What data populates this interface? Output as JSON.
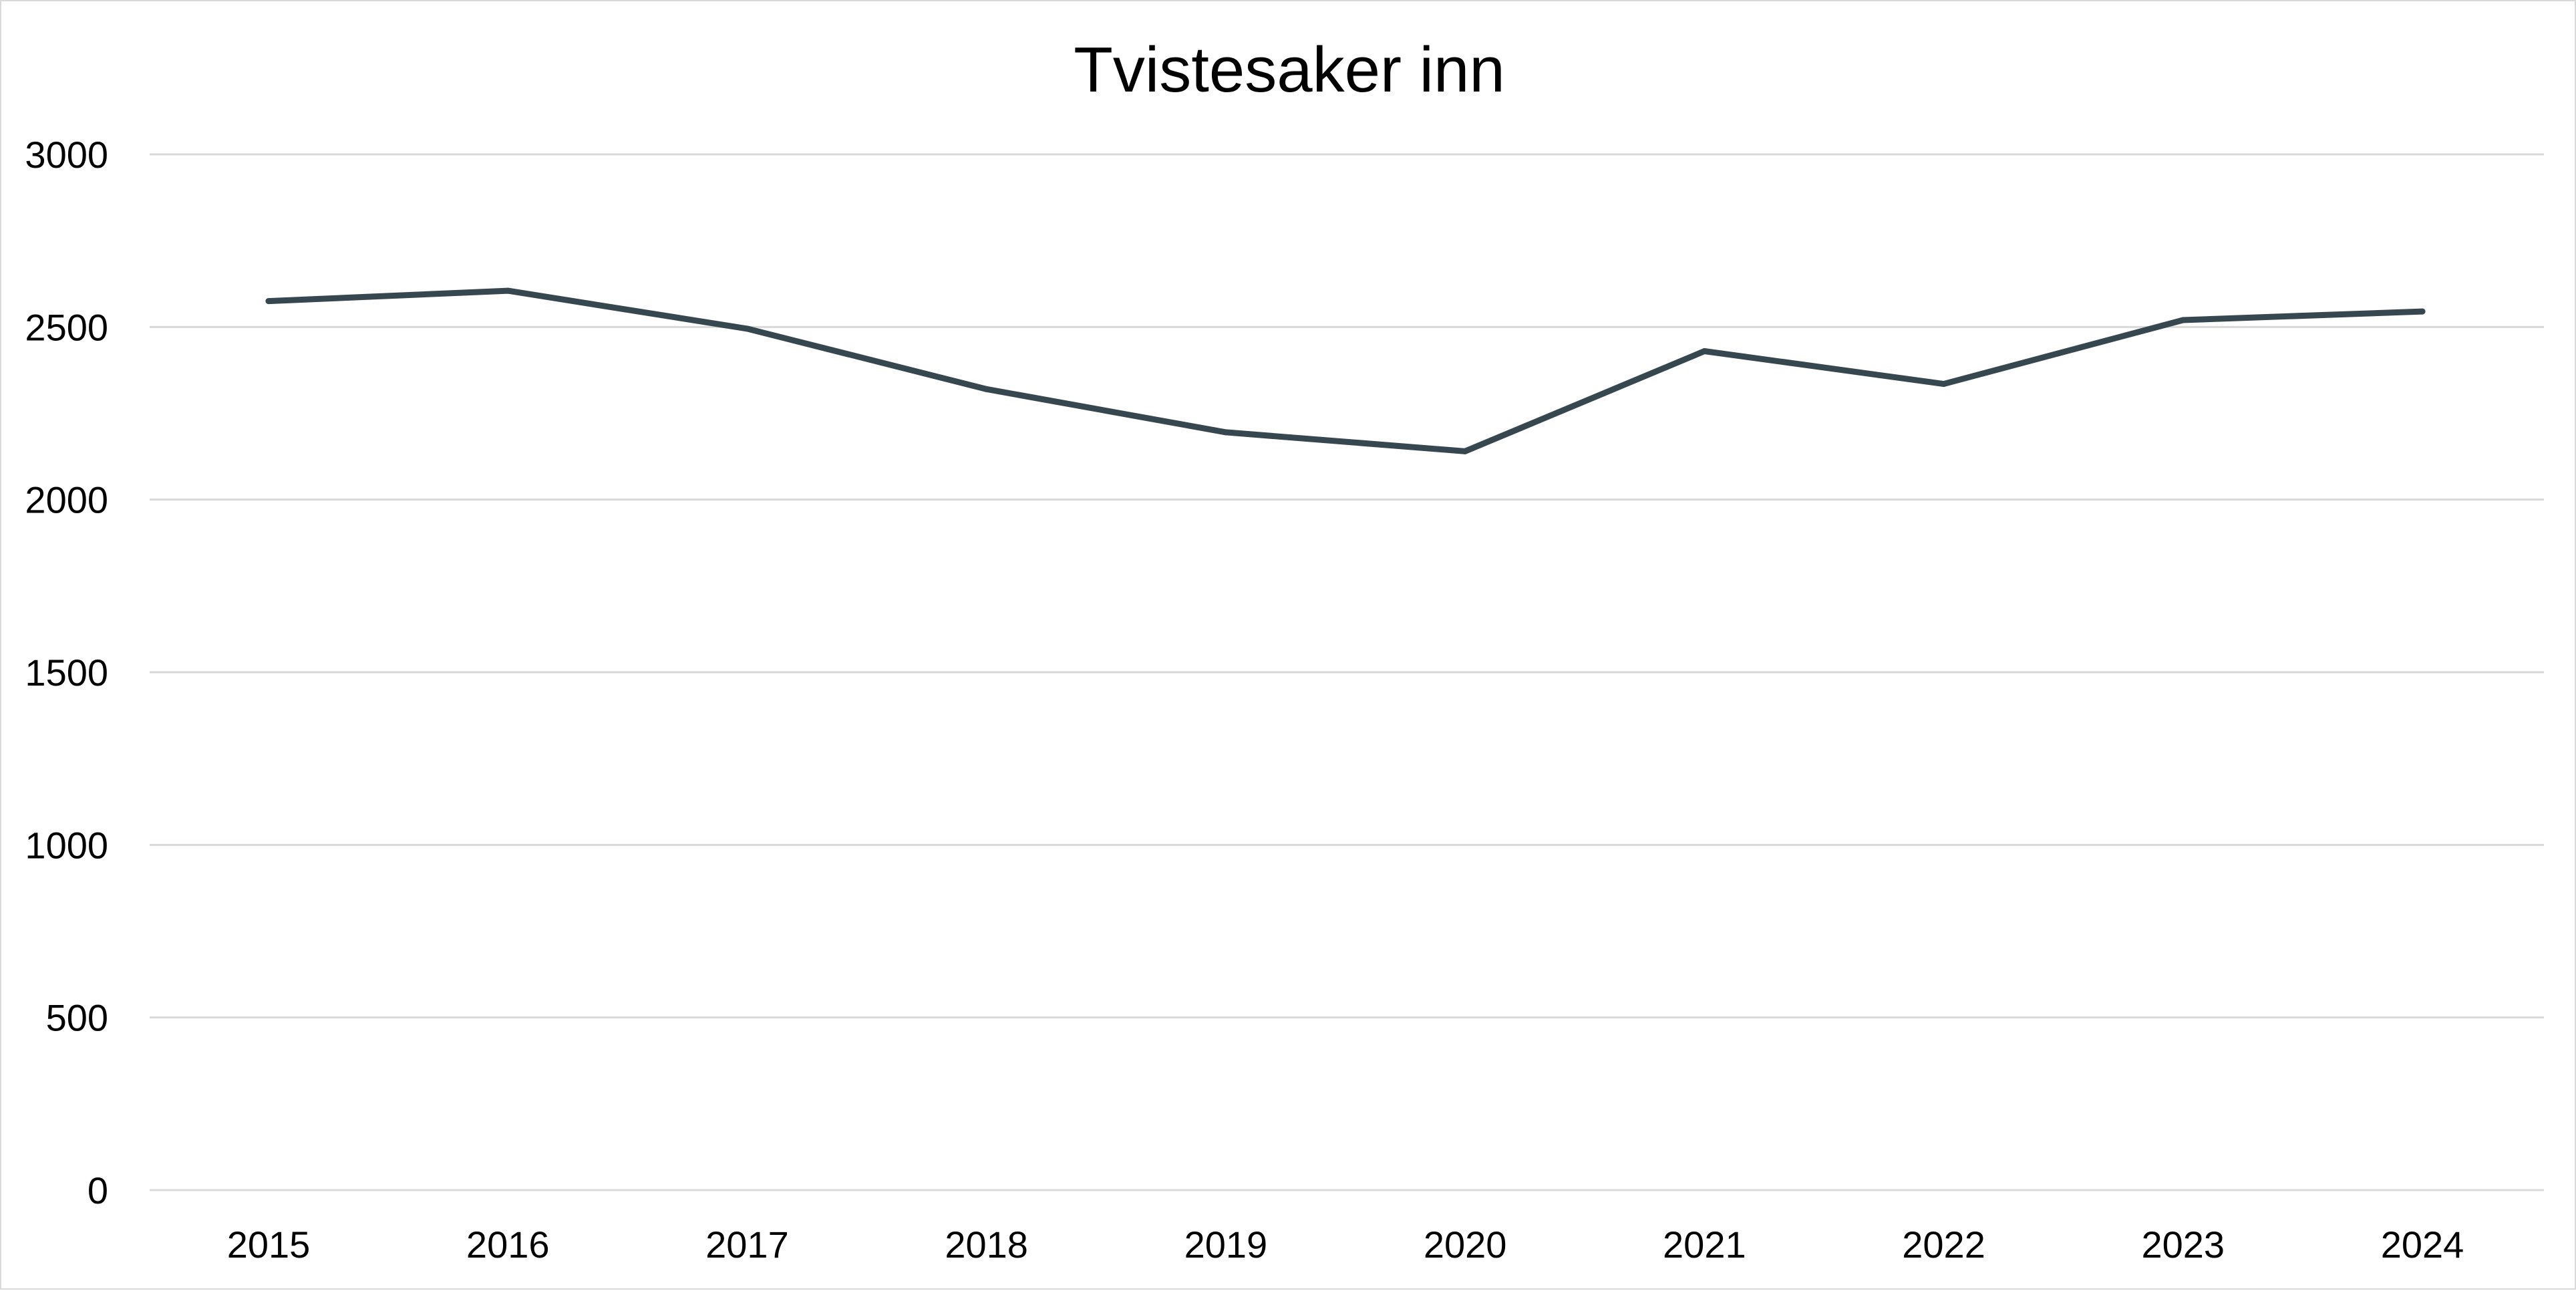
{
  "chart_data": {
    "type": "line",
    "title": "Tvistesaker inn",
    "xlabel": "",
    "ylabel": "",
    "categories": [
      "2015",
      "2016",
      "2017",
      "2018",
      "2019",
      "2020",
      "2021",
      "2022",
      "2023",
      "2024"
    ],
    "series": [
      {
        "values": [
          2575,
          2605,
          2495,
          2320,
          2195,
          2140,
          2430,
          2335,
          2520,
          2545
        ],
        "color": "#37474f"
      }
    ],
    "ylim": [
      0,
      3000
    ],
    "yticks": [
      "0",
      "500",
      "1000",
      "1500",
      "2000",
      "2500",
      "3000"
    ],
    "grid": "horizontal",
    "legend": "none"
  }
}
